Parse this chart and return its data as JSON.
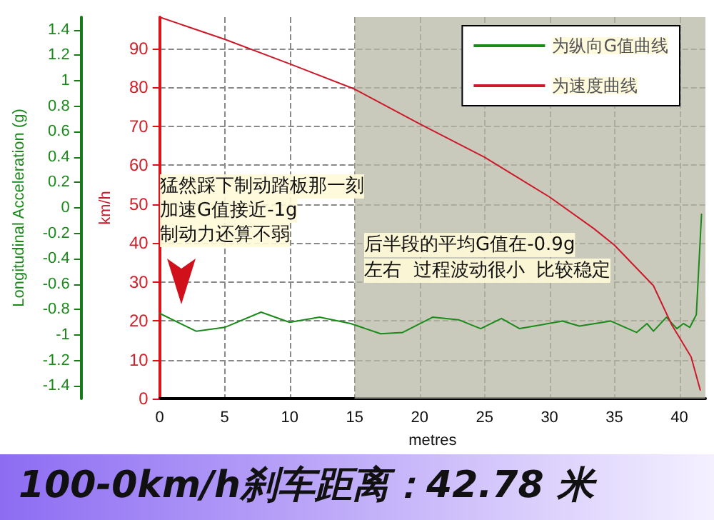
{
  "chart_data": {
    "type": "line",
    "title": "100-0km/h刹车距离：42.78 米",
    "xlabel": "metres",
    "ylabel": "km/h",
    "y2label": "Longitudinal Acceleration (g)",
    "xlim": [
      0,
      42
    ],
    "xticks": [
      0,
      5,
      10,
      15,
      20,
      25,
      30,
      35,
      40
    ],
    "ylim": [
      0,
      98
    ],
    "yticks": [
      0,
      10,
      20,
      30,
      40,
      50,
      60,
      70,
      80,
      90
    ],
    "y2lim": [
      -1.5,
      1.5
    ],
    "y2ticks": [
      -1.4,
      -1.2,
      -1,
      -0.8,
      -0.6,
      -0.4,
      -0.2,
      0,
      0.2,
      0.4,
      0.6,
      0.8,
      1,
      1.2,
      1.4
    ],
    "series": [
      {
        "name": "为纵向G值曲线",
        "color": "#1a8a1a",
        "axis": "y2",
        "x": [
          0,
          2.8,
          5,
          7.8,
          10,
          12.3,
          14.7,
          17,
          18.7,
          21,
          23,
          24.7,
          26.3,
          27.7,
          31,
          32.3,
          34.7,
          36.7,
          37.5,
          38,
          39,
          39.8,
          40.3,
          40.8,
          41.3,
          41.7
        ],
        "values": [
          -0.83,
          -0.97,
          -0.94,
          -0.82,
          -0.9,
          -0.86,
          -0.91,
          -0.99,
          -0.98,
          -0.86,
          -0.88,
          -0.95,
          -0.87,
          -0.95,
          -0.89,
          -0.93,
          -0.89,
          -0.98,
          -0.91,
          -0.97,
          -0.86,
          -0.95,
          -0.91,
          -0.94,
          -0.84,
          -0.05
        ]
      },
      {
        "name": "为速度曲线",
        "color": "#cc1a2a",
        "x": [
          0,
          5,
          10,
          15,
          20,
          25,
          30,
          33.4,
          35,
          38,
          39.4,
          40.9,
          41.6
        ],
        "values": [
          98,
          92.3,
          86,
          79.5,
          70.6,
          62,
          51.8,
          43.7,
          39.4,
          29,
          19,
          10.7,
          2.2
        ]
      }
    ],
    "bands": [
      {
        "axis": "x",
        "from": 15,
        "to": 42,
        "color": "#b8b8a6"
      }
    ],
    "annotations": [
      "猛然踩下制动踏板那一刻",
      "加速G值接近-1g",
      "制动力还算不弱",
      "后半段的平均G值在-0.9g",
      "左右  过程波动很小  比较稳定"
    ],
    "grid": true,
    "legend": "top right",
    "marker": "none",
    "line_style": "solid"
  }
}
